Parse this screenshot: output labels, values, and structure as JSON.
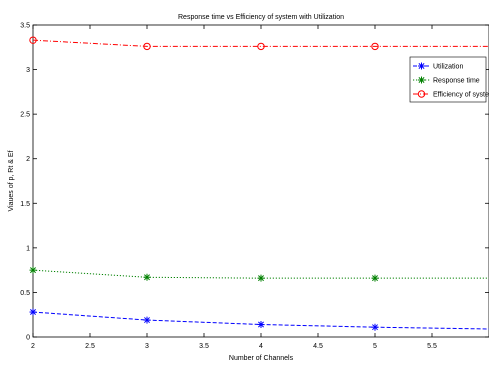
{
  "chart_data": {
    "type": "line",
    "title": "Response time vs Efficiency of system with Utilization",
    "xlabel": "Number of Channels",
    "ylabel": "Viaues of p,  Rt & Ef",
    "xlim": [
      2,
      6
    ],
    "ylim": [
      0,
      3.5
    ],
    "xticks": [
      2,
      2.5,
      3,
      3.5,
      4,
      4.5,
      5,
      5.5
    ],
    "yticks": [
      0,
      0.5,
      1,
      1.5,
      2,
      2.5,
      3,
      3.5
    ],
    "legend_position": "top-right",
    "grid": false,
    "series": [
      {
        "name": "Utilization",
        "color": "#0000ff",
        "marker": "star",
        "line_style": "dashed",
        "x": [
          2,
          3,
          4,
          5,
          6
        ],
        "y": [
          0.28,
          0.19,
          0.14,
          0.11,
          0.09
        ]
      },
      {
        "name": "Response time",
        "color": "#008000",
        "marker": "star",
        "line_style": "dotted",
        "x": [
          2,
          3,
          4,
          5,
          6
        ],
        "y": [
          0.75,
          0.67,
          0.66,
          0.66,
          0.66
        ]
      },
      {
        "name": "Efficiency of system",
        "color": "#ff0000",
        "marker": "circle",
        "line_style": "dashdot",
        "x": [
          2,
          3,
          4,
          5,
          6
        ],
        "y": [
          3.33,
          3.26,
          3.26,
          3.26,
          3.26
        ]
      }
    ]
  }
}
